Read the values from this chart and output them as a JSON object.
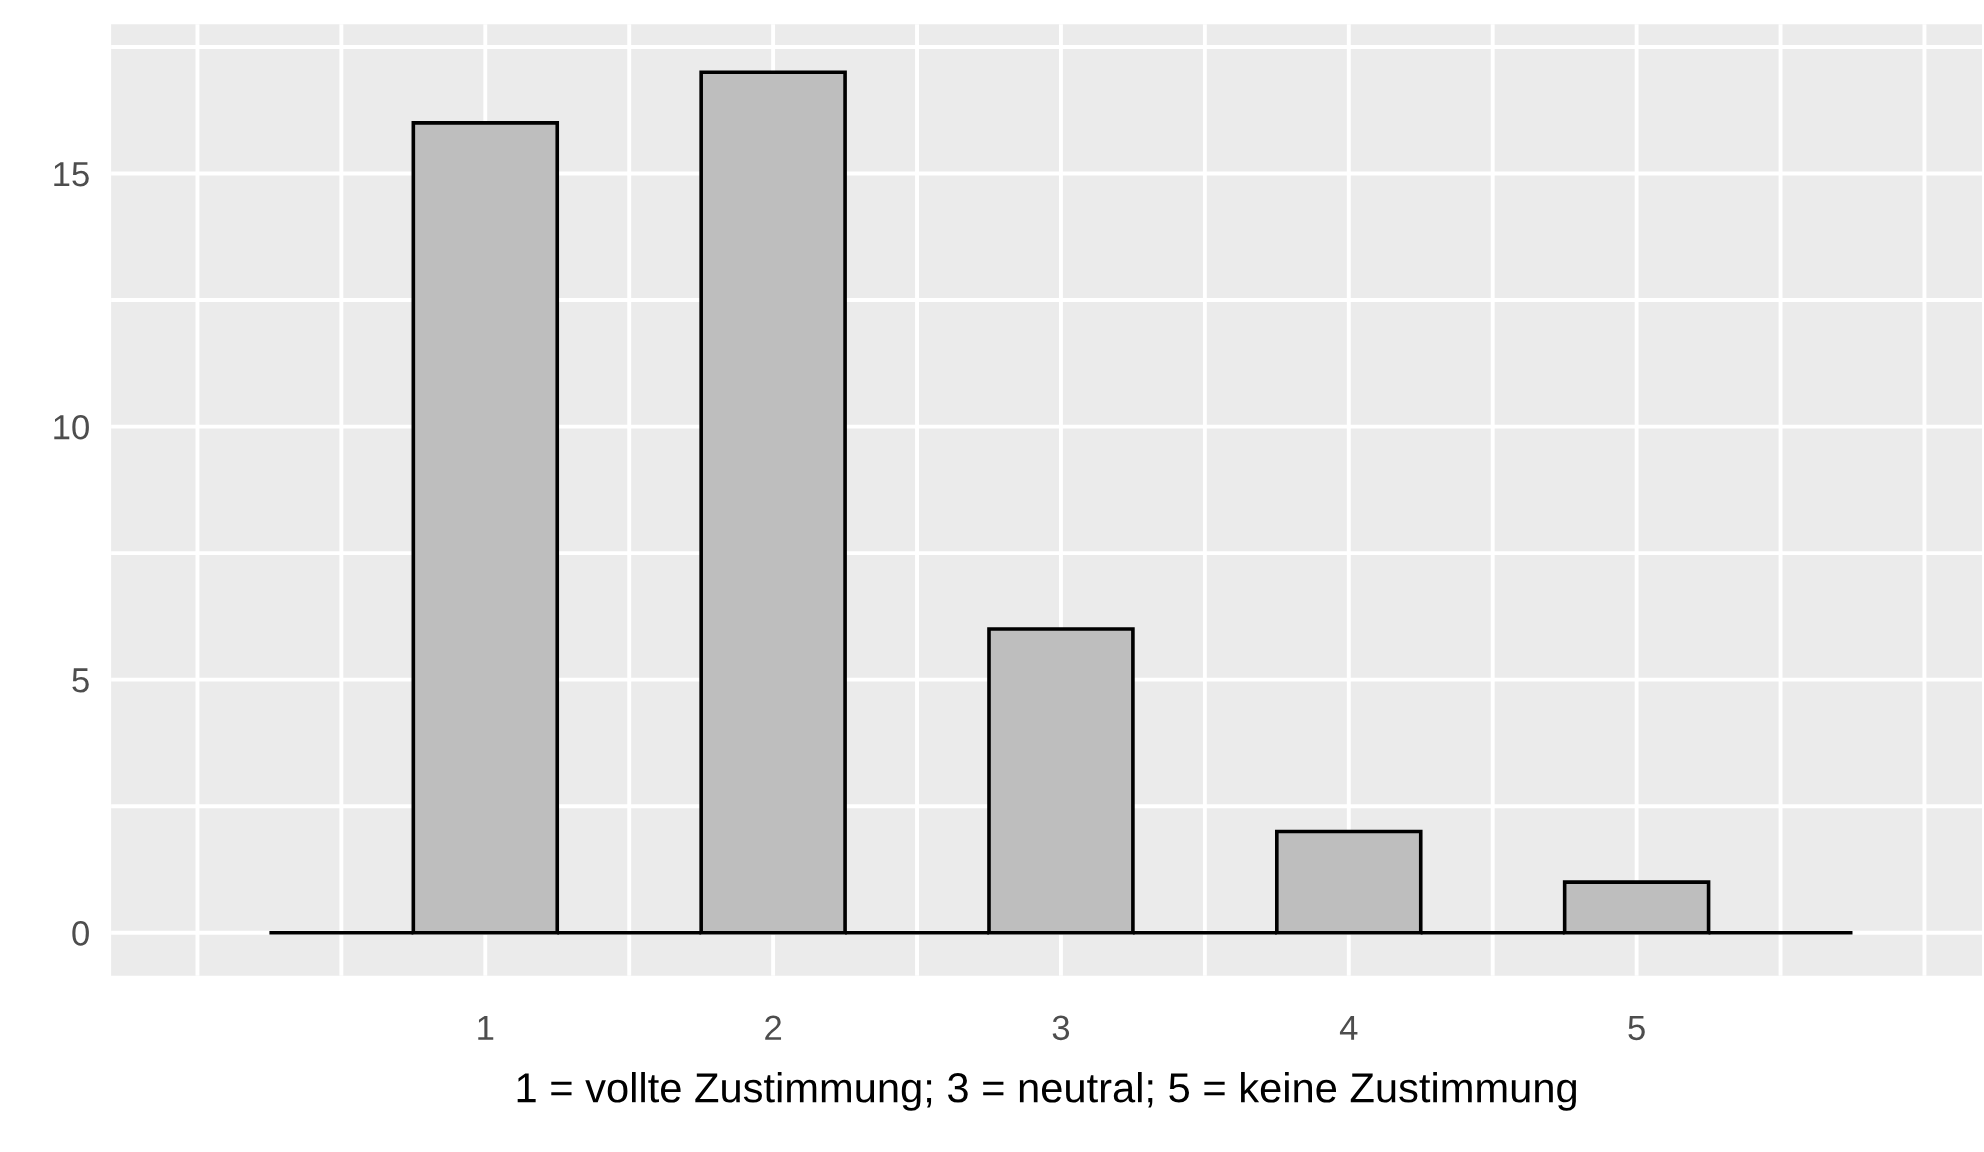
{
  "chart_data": {
    "type": "histogram",
    "xlabel": "1 = vollte Zustimmung; 3 = neutral; 5 = keine Zustimmung",
    "bins": [
      0.25,
      0.75,
      1.25,
      1.75,
      2.25,
      2.75,
      3.25,
      3.75,
      4.25,
      4.75,
      5.25,
      5.75
    ],
    "values": [
      0,
      16,
      0,
      17,
      0,
      6,
      0,
      2,
      0,
      1,
      0
    ],
    "colors": [
      "#000000",
      "#bebebe",
      "#000000",
      "#bebebe",
      "#000000",
      "#bebebe",
      "#000000",
      "#bebebe",
      "#000000",
      "#bebebe",
      "#000000"
    ],
    "xlim": [
      -0.3,
      6.2
    ],
    "xticks": [
      {
        "value": 0,
        "label": null
      },
      {
        "value": 0.5,
        "label": null
      },
      1,
      {
        "value": 1.5,
        "label": null
      },
      2,
      {
        "value": 2.5,
        "label": null
      },
      3,
      {
        "value": 3.5,
        "label": null
      },
      4,
      {
        "value": 4.5,
        "label": null
      },
      5,
      {
        "value": 5.5,
        "label": null
      },
      {
        "value": 6,
        "label": null
      }
    ],
    "ylim": [
      -0.85,
      17.95
    ],
    "yticks": [
      0,
      {
        "value": 2.5,
        "label": null
      },
      5,
      {
        "value": 7.5,
        "label": null
      },
      10,
      {
        "value": 12.5,
        "label": null
      },
      15,
      {
        "value": 17.5,
        "label": null
      }
    ],
    "grid": true
  }
}
